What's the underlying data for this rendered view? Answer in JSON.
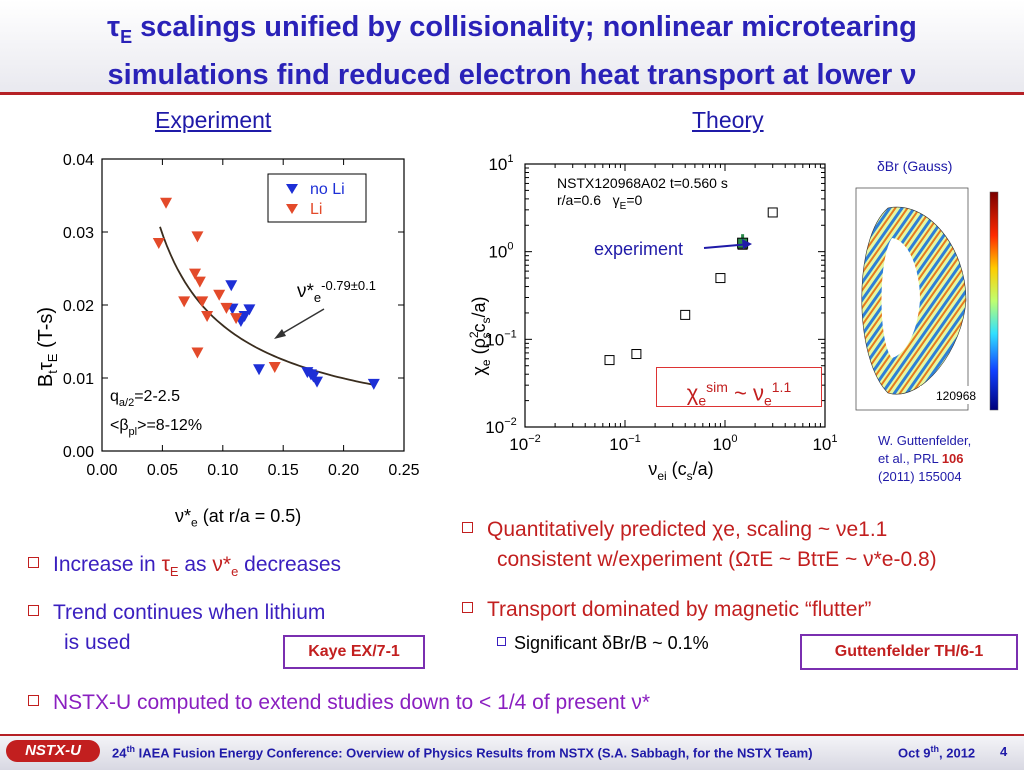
{
  "title": {
    "line1_sym": "τ",
    "line1_sub": "E",
    "line1_rest": " scalings unified by collisionality; nonlinear microtearing",
    "line2": "simulations find reduced electron heat transport at lower ν"
  },
  "experiment": {
    "heading": "Experiment",
    "xlabel_pre": "ν*",
    "xlabel_sub": "e",
    "xlabel_rest": " (at r/a = 0.5)",
    "ylabel": "BtτE (T-s)",
    "bullets": [
      {
        "pre": "Increase in ",
        "sym": "τ",
        "sub": "E",
        "mid": " as ",
        "sym2": "ν*",
        "sub2": "e",
        "post": " decreases"
      },
      {
        "text": "Trend continues when lithium"
      },
      {
        "text": "is used"
      }
    ],
    "ref": "Kaye EX/7-1"
  },
  "theory": {
    "heading": "Theory",
    "shot": "NSTX120968A02 t=0.560 s",
    "radius": "r/a=0.6",
    "gamma_label": "γ",
    "gamma_sub": "E",
    "gamma_val": "=0",
    "experiment_label": "experiment",
    "scaling": "χesim ~ νe1.1",
    "ylabel": "χe (ρs2cs/a)",
    "xlabel": "νei (cs/a)",
    "contour_title": "δBr (Gauss)",
    "contour_shot": "120968",
    "citation": [
      "W. Guttenfelder,",
      "et al., PRL ",
      "106",
      "(2011) 155004"
    ],
    "bullets": [
      {
        "text": "Quantitatively predicted χe, scaling ~ νe1.1"
      },
      {
        "text": "consistent w/experiment (ΩτE ~ BtτE ~ ν*e-0.8)"
      },
      {
        "text": "Transport dominated by magnetic “flutter”"
      },
      {
        "text": "Significant δBr/B ~ 0.1%"
      }
    ],
    "ref": "Guttenfelder TH/6-1"
  },
  "bottom_bullet": "NSTX-U computed to extend studies down to < 1/4 of present ν*",
  "footer": {
    "logo": "NSTX-U",
    "conf_num": "24",
    "conf_sup": "th",
    "conf_text": " IAEA Fusion Energy Conference: Overview of Physics Results from NSTX (S.A. Sabbagh, for the NSTX Team)",
    "date_pre": "Oct 9",
    "date_sup": "th",
    "date_post": ", 2012",
    "page": "4"
  },
  "colors": {
    "accent": "#b52025",
    "title_blue": "#2a22b8",
    "text_blue": "#3a1fbf",
    "text_red": "#c21f1f",
    "tri_blue": "#1d2fd6",
    "tri_red": "#e34a2a",
    "legend_blue": "#1d2fd6",
    "legend_red": "#e34a2a"
  },
  "chart_data": [
    {
      "type": "scatter",
      "xlabel": "ν*e (at r/a = 0.5)",
      "ylabel": "BtτE (T-s)",
      "xlim": [
        0,
        0.25
      ],
      "ylim": [
        0,
        0.04
      ],
      "xticks": [
        "0.00",
        "0.05",
        "0.10",
        "0.15",
        "0.20",
        "0.25"
      ],
      "yticks": [
        "0.00",
        "0.01",
        "0.02",
        "0.03",
        "0.04"
      ],
      "legend": [
        "no Li",
        "Li"
      ],
      "legend_position": "top-right",
      "annotations": [
        "ν*e-0.79±0.1",
        "qa/2=2-2.5",
        "<βpl>=8-12%"
      ],
      "series": [
        {
          "name": "no Li",
          "marker": "triangle-down",
          "points": [
            [
              0.107,
              0.0227
            ],
            [
              0.118,
              0.0185
            ],
            [
              0.108,
              0.0195
            ],
            [
              0.115,
              0.0178
            ],
            [
              0.122,
              0.0194
            ],
            [
              0.13,
              0.0112
            ],
            [
              0.17,
              0.0108
            ],
            [
              0.173,
              0.0105
            ],
            [
              0.175,
              0.0102
            ],
            [
              0.178,
              0.0095
            ],
            [
              0.225,
              0.0092
            ]
          ]
        },
        {
          "name": "Li",
          "marker": "triangle-down",
          "points": [
            [
              0.053,
              0.034
            ],
            [
              0.047,
              0.0285
            ],
            [
              0.079,
              0.0294
            ],
            [
              0.077,
              0.0243
            ],
            [
              0.081,
              0.0232
            ],
            [
              0.068,
              0.0205
            ],
            [
              0.083,
              0.0205
            ],
            [
              0.087,
              0.0185
            ],
            [
              0.097,
              0.0214
            ],
            [
              0.103,
              0.0196
            ],
            [
              0.111,
              0.0182
            ],
            [
              0.079,
              0.0135
            ],
            [
              0.143,
              0.0115
            ]
          ]
        }
      ],
      "fit": {
        "name": "ν*e-0.79±0.1",
        "exponent": -0.79,
        "x_range": [
          0.048,
          0.225
        ]
      }
    },
    {
      "type": "scatter",
      "xscale": "log",
      "yscale": "log",
      "xlabel": "νei (cs/a)",
      "ylabel": "χe (ρs2cs/a)",
      "xlim": [
        0.01,
        10
      ],
      "ylim": [
        0.01,
        10
      ],
      "xticks": [
        "10−2",
        "10−1",
        "100",
        "101"
      ],
      "yticks": [
        "10−2",
        "10−1",
        "100",
        "101"
      ],
      "series": [
        {
          "name": "simulation",
          "marker": "open-square",
          "points": [
            [
              0.07,
              0.058
            ],
            [
              0.13,
              0.068
            ],
            [
              0.4,
              0.19
            ],
            [
              0.9,
              0.5
            ],
            [
              1.5,
              1.2
            ],
            [
              3.0,
              2.8
            ]
          ]
        },
        {
          "name": "experiment",
          "marker": "filled-square",
          "points": [
            [
              1.5,
              1.25
            ]
          ]
        }
      ]
    }
  ]
}
